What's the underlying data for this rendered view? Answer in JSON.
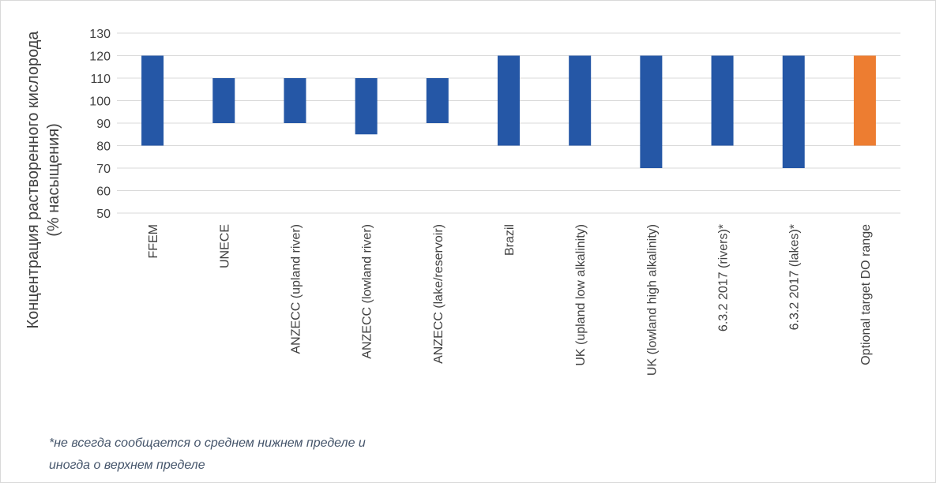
{
  "chart_data": {
    "type": "bar",
    "subtype": "floating-range",
    "categories": [
      "FFEM",
      "UNECE",
      "ANZECC (upland river)",
      "ANZECC (lowland river)",
      "ANZECC (lake/reservoir)",
      "Brazil",
      "UK (upland low alkalinity)",
      "UK (lowland high alkalinity)",
      "6.3.2 2017 (rivers)*",
      "6.3.2 2017 (lakes)*",
      "Optional target DO range"
    ],
    "low": [
      80,
      90,
      90,
      85,
      90,
      80,
      80,
      70,
      80,
      70,
      80
    ],
    "high": [
      120,
      110,
      110,
      110,
      110,
      120,
      120,
      120,
      120,
      120,
      120
    ],
    "ylabel_lines": [
      "Концентрация растворенного кислорода",
      "(% насыщения)"
    ],
    "ylim": [
      50,
      130
    ],
    "yticks": [
      50,
      60,
      70,
      80,
      90,
      100,
      110,
      120,
      130
    ],
    "grid": true,
    "legend": "none",
    "colors": {
      "default": "#2557a6",
      "highlight": "#ed7d31",
      "grid": "#d9d9d9",
      "text": "#404040",
      "note": "#44546a"
    },
    "highlight_index": 10
  },
  "footnote": {
    "line1": "*не всегда сообщается о среднем нижнем пределе и",
    "line2": "иногда о верхнем пределе"
  }
}
